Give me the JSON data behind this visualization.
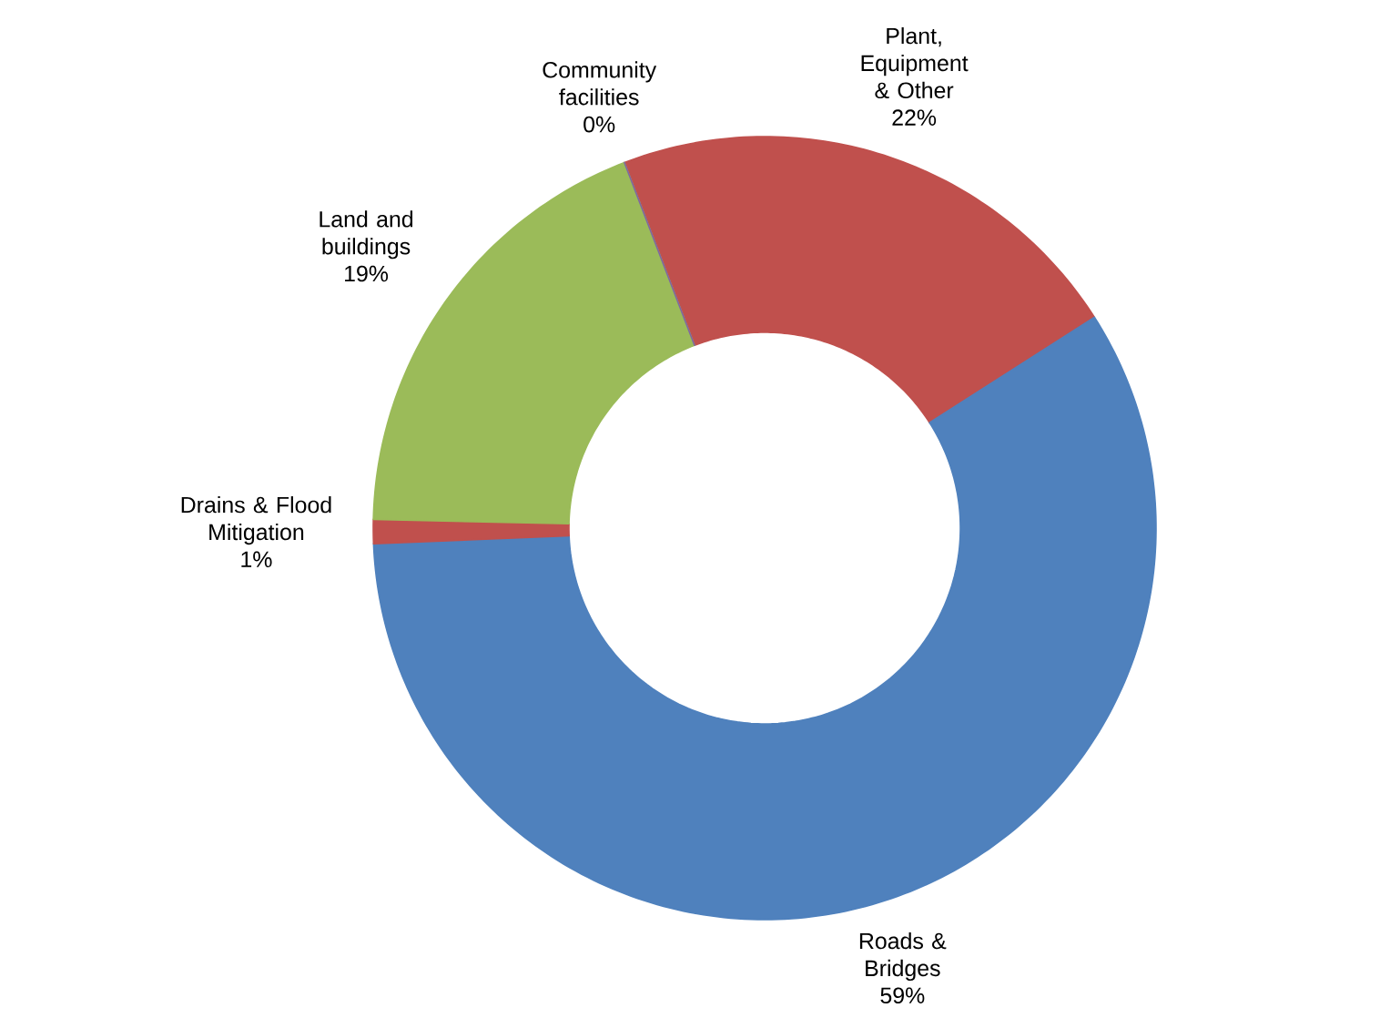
{
  "chart_data": {
    "type": "donut",
    "categories": [
      "Plant, Equipment & Other",
      "Roads & Bridges",
      "Drains & Flood Mitigation",
      "Land and buildings",
      "Community facilities"
    ],
    "values": [
      22,
      59,
      1,
      19,
      0
    ],
    "value_labels": [
      "22%",
      "59%",
      "1%",
      "19%",
      "0%"
    ],
    "colors": [
      "#c0504d",
      "#4f81bd",
      "#c0504d",
      "#9bbb59",
      "#8064a2"
    ]
  }
}
